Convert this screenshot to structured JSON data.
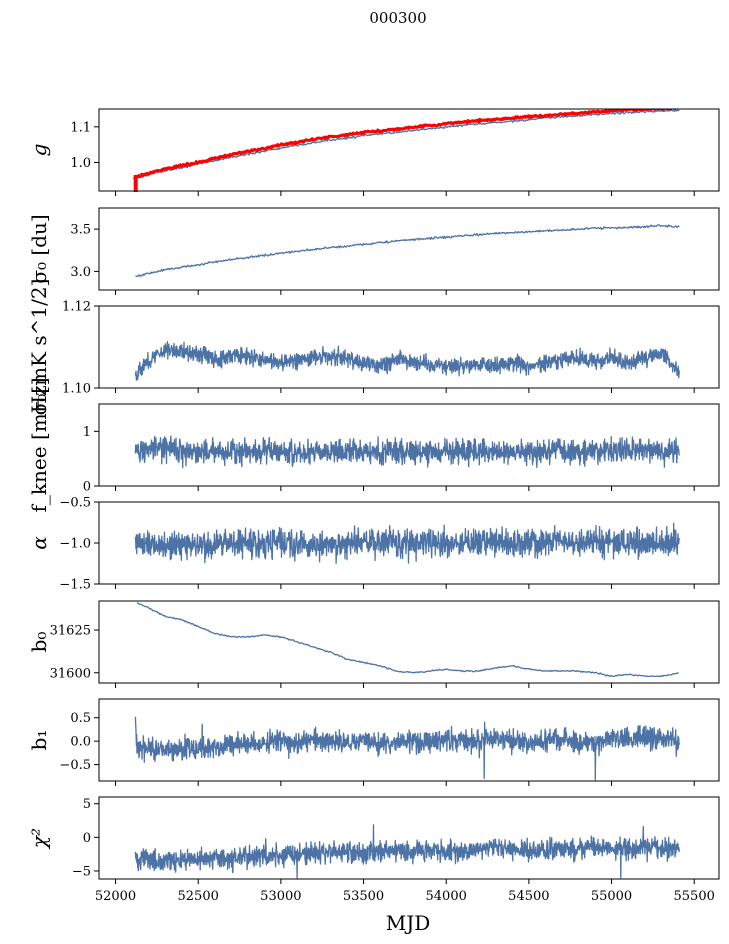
{
  "figure": {
    "title": "000300",
    "xlabel": "MJD"
  },
  "colors": {
    "series": "#4c72a6",
    "overlay": "#ff0000",
    "axis": "#000000",
    "background": "#ffffff"
  },
  "chart_data": [
    {
      "type": "line",
      "panel": "g",
      "ylabel": "g",
      "xlim": [
        51900,
        55650
      ],
      "ylim": [
        0.92,
        1.15
      ],
      "yticks": [
        1.0,
        1.1
      ],
      "yticklabels": [
        "1.0",
        "1.1"
      ],
      "show_xticklabels": false,
      "series": [
        {
          "name": "g",
          "color": "#4c72a6",
          "x": [
            52110,
            52300,
            52500,
            52700,
            52900,
            53100,
            53300,
            53500,
            53700,
            53900,
            54100,
            54300,
            54500,
            54700,
            54900,
            55100,
            55300,
            55410
          ],
          "y": [
            0.955,
            0.978,
            0.995,
            1.015,
            1.032,
            1.048,
            1.063,
            1.075,
            1.085,
            1.095,
            1.104,
            1.112,
            1.12,
            1.128,
            1.135,
            1.14,
            1.145,
            1.145
          ]
        },
        {
          "name": "g_ref",
          "color": "#ff0000",
          "x": [
            52110,
            52300,
            52500,
            52700,
            52900,
            53100,
            53300,
            53500,
            53700,
            53900,
            54100,
            54300,
            54500,
            54700,
            54900,
            55100,
            55300,
            55410
          ],
          "y": [
            0.958,
            0.982,
            1.0,
            1.022,
            1.04,
            1.057,
            1.072,
            1.084,
            1.094,
            1.104,
            1.113,
            1.121,
            1.128,
            1.135,
            1.142,
            1.148,
            1.152,
            1.152
          ]
        }
      ]
    },
    {
      "type": "line",
      "panel": "sigma0_du",
      "ylabel": "σ₀ [du]",
      "xlim": [
        51900,
        55650
      ],
      "ylim": [
        2.78,
        3.75
      ],
      "yticks": [
        3.0,
        3.5
      ],
      "yticklabels": [
        "3.0",
        "3.5"
      ],
      "show_xticklabels": false,
      "series": [
        {
          "name": "sigma0_du",
          "color": "#4c72a6",
          "x": [
            52120,
            52300,
            52500,
            52700,
            52900,
            53100,
            53300,
            53500,
            53700,
            53900,
            54100,
            54300,
            54500,
            54700,
            54900,
            55100,
            55300,
            55410
          ],
          "y": [
            2.94,
            3.02,
            3.08,
            3.14,
            3.19,
            3.24,
            3.28,
            3.32,
            3.36,
            3.39,
            3.42,
            3.45,
            3.47,
            3.49,
            3.51,
            3.52,
            3.54,
            3.53
          ]
        }
      ]
    },
    {
      "type": "line",
      "panel": "sigma0_mK",
      "ylabel": "σ₀[mK s^1/2]",
      "xlim": [
        51900,
        55650
      ],
      "ylim": [
        1.1,
        1.12
      ],
      "yticks": [
        1.1,
        1.12
      ],
      "yticklabels": [
        "1.10",
        "1.12"
      ],
      "show_xticklabels": false,
      "series": [
        {
          "name": "sigma0_mK",
          "color": "#4c72a6",
          "x": [
            52120,
            52200,
            52300,
            52400,
            52500,
            52600,
            52700,
            52800,
            52900,
            53000,
            53100,
            53200,
            53300,
            53400,
            53500,
            53600,
            53700,
            53800,
            53900,
            54000,
            54100,
            54200,
            54300,
            54400,
            54500,
            54600,
            54700,
            54800,
            54900,
            55000,
            55100,
            55200,
            55300,
            55410
          ],
          "y": [
            1.1035,
            1.1065,
            1.1095,
            1.109,
            1.1085,
            1.107,
            1.108,
            1.1075,
            1.107,
            1.106,
            1.1068,
            1.1075,
            1.1078,
            1.1072,
            1.106,
            1.1055,
            1.107,
            1.1065,
            1.106,
            1.1055,
            1.1052,
            1.106,
            1.1058,
            1.1062,
            1.1055,
            1.106,
            1.107,
            1.107,
            1.1065,
            1.1075,
            1.106,
            1.1072,
            1.1085,
            1.1035
          ]
        }
      ]
    },
    {
      "type": "line",
      "panel": "fknee",
      "ylabel": "f_knee [mHz]",
      "xlim": [
        51900,
        55650
      ],
      "ylim": [
        0,
        1.5
      ],
      "yticks": [
        0,
        1
      ],
      "yticklabels": [
        "0",
        "1"
      ],
      "show_xticklabels": false,
      "series": [
        {
          "name": "fknee",
          "color": "#4c72a6",
          "x": [
            52120,
            52300,
            52500,
            52700,
            52900,
            53100,
            53300,
            53500,
            53700,
            53900,
            54100,
            54300,
            54500,
            54700,
            54900,
            55100,
            55300,
            55410
          ],
          "y": [
            0.65,
            0.68,
            0.62,
            0.63,
            0.66,
            0.6,
            0.64,
            0.62,
            0.63,
            0.61,
            0.64,
            0.63,
            0.62,
            0.65,
            0.63,
            0.66,
            0.64,
            0.65
          ]
        }
      ]
    },
    {
      "type": "line",
      "panel": "alpha",
      "ylabel": "α",
      "xlim": [
        51900,
        55650
      ],
      "ylim": [
        -1.5,
        -0.5
      ],
      "yticks": [
        -1.5,
        -1.0,
        -0.5
      ],
      "yticklabels": [
        "−1.5",
        "−1.0",
        "−0.5"
      ],
      "show_xticklabels": false,
      "series": [
        {
          "name": "alpha",
          "color": "#4c72a6",
          "x": [
            52120,
            52300,
            52500,
            52700,
            52900,
            53100,
            53300,
            53500,
            53700,
            53900,
            54100,
            54300,
            54500,
            54700,
            54900,
            55100,
            55300,
            55410
          ],
          "y": [
            -1.0,
            -1.02,
            -1.03,
            -1.0,
            -0.99,
            -1.01,
            -1.02,
            -1.0,
            -1.01,
            -1.0,
            -0.99,
            -1.0,
            -1.01,
            -0.98,
            -0.99,
            -1.0,
            -0.97,
            -0.98
          ]
        }
      ]
    },
    {
      "type": "line",
      "panel": "b0",
      "ylabel": "b₀",
      "xlim": [
        51900,
        55650
      ],
      "ylim": [
        31594,
        31642
      ],
      "yticks": [
        31600,
        31625
      ],
      "yticklabels": [
        "31600",
        "31625"
      ],
      "show_xticklabels": false,
      "series": [
        {
          "name": "b0",
          "color": "#4c72a6",
          "x": [
            52130,
            52200,
            52300,
            52400,
            52500,
            52600,
            52700,
            52800,
            52900,
            53000,
            53100,
            53200,
            53300,
            53400,
            53500,
            53600,
            53700,
            53800,
            53900,
            54000,
            54100,
            54200,
            54300,
            54400,
            54500,
            54600,
            54700,
            54800,
            54900,
            55000,
            55100,
            55200,
            55300,
            55410
          ],
          "y": [
            31641,
            31638,
            31633,
            31631,
            31627,
            31623,
            31621,
            31621,
            31622,
            31621,
            31618,
            31615,
            31612,
            31608,
            31606,
            31604,
            31601,
            31600,
            31601,
            31602,
            31601,
            31601,
            31603,
            31604,
            31602,
            31601,
            31601,
            31601,
            31600,
            31598,
            31599,
            31598,
            31598,
            31600
          ]
        }
      ]
    },
    {
      "type": "line",
      "panel": "b1",
      "ylabel": "b₁",
      "xlim": [
        51900,
        55650
      ],
      "ylim": [
        -0.85,
        0.9
      ],
      "yticks": [
        -0.5,
        0.0,
        0.5
      ],
      "yticklabels": [
        "−0.5",
        "0.0",
        "0.5"
      ],
      "show_xticklabels": false,
      "series": [
        {
          "name": "b1",
          "color": "#4c72a6",
          "x": [
            52120,
            52130,
            52200,
            52300,
            52400,
            52500,
            52600,
            52700,
            52800,
            52900,
            53000,
            53100,
            53200,
            53300,
            53400,
            53500,
            53600,
            53700,
            53800,
            53900,
            54000,
            54100,
            54200,
            54300,
            54400,
            54500,
            54600,
            54700,
            54800,
            54900,
            55000,
            55100,
            55200,
            55300,
            55410
          ],
          "y": [
            0.55,
            -0.1,
            -0.15,
            -0.2,
            -0.15,
            -0.15,
            -0.12,
            -0.1,
            -0.05,
            -0.02,
            0.0,
            -0.05,
            0.05,
            -0.02,
            0.0,
            0.02,
            -0.05,
            0.0,
            0.0,
            -0.05,
            0.05,
            0.0,
            0.0,
            0.05,
            0.0,
            -0.02,
            0.0,
            0.05,
            -0.02,
            -0.05,
            0.05,
            0.0,
            0.1,
            0.05,
            0.0
          ]
        }
      ]
    },
    {
      "type": "line",
      "panel": "chi2",
      "ylabel": "χ²",
      "xlim": [
        51900,
        55650
      ],
      "ylim": [
        -6.2,
        6
      ],
      "yticks": [
        -5,
        0,
        5
      ],
      "yticklabels": [
        "−5",
        "0",
        "5"
      ],
      "xticks": [
        52000,
        52500,
        53000,
        53500,
        54000,
        54500,
        55000,
        55500
      ],
      "xticklabels": [
        "52000",
        "52500",
        "53000",
        "53500",
        "54000",
        "54500",
        "55000",
        "55500"
      ],
      "show_xticklabels": true,
      "series": [
        {
          "name": "chi2",
          "color": "#4c72a6",
          "x": [
            52120,
            52300,
            52500,
            52700,
            52900,
            53100,
            53300,
            53500,
            53700,
            53900,
            54100,
            54300,
            54500,
            54700,
            54900,
            55100,
            55300,
            55410
          ],
          "y": [
            -3.0,
            -3.5,
            -3.2,
            -3.0,
            -2.8,
            -2.5,
            -2.2,
            -2.5,
            -2.0,
            -2.0,
            -2.2,
            -1.5,
            -2.0,
            -1.8,
            -1.5,
            -1.8,
            -1.6,
            -1.8
          ]
        }
      ]
    }
  ]
}
